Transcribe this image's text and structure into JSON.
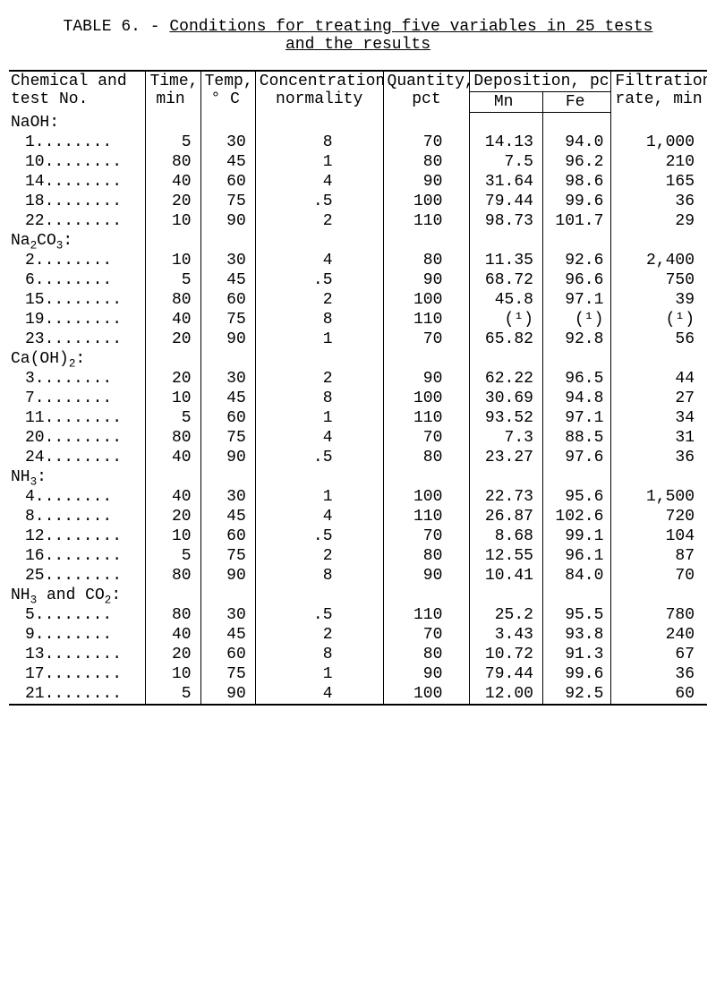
{
  "title": {
    "prefix": "TABLE 6. - ",
    "line1_underlined": "Conditions for treating five variables in 25 tests",
    "line2_underlined": "and the results"
  },
  "table": {
    "headers": {
      "chem1": "Chemical and",
      "chem2": "test No.",
      "time1": "Time,",
      "time2": "min",
      "temp1": "Temp,",
      "temp2": "° C",
      "conc1": "Concentration,",
      "conc2": "normality",
      "qty1": "Quantity,",
      "qty2": "pct",
      "dep": "Deposition, pct",
      "mn": "Mn",
      "fe": "Fe",
      "filt1": "Filtration",
      "filt2": "rate, min"
    },
    "groups": [
      {
        "label_html": "NaOH:",
        "rows": [
          {
            "no": "1........",
            "time": "5",
            "temp": "30",
            "conc": "8",
            "qty": "70",
            "mn": "14.13",
            "fe": "94.0",
            "filt": "1,000"
          },
          {
            "no": "10........",
            "time": "80",
            "temp": "45",
            "conc": "1",
            "qty": "80",
            "mn": "7.5",
            "fe": "96.2",
            "filt": "210"
          },
          {
            "no": "14........",
            "time": "40",
            "temp": "60",
            "conc": "4",
            "qty": "90",
            "mn": "31.64",
            "fe": "98.6",
            "filt": "165"
          },
          {
            "no": "18........",
            "time": "20",
            "temp": "75",
            "conc": ".5",
            "qty": "100",
            "mn": "79.44",
            "fe": "99.6",
            "filt": "36"
          },
          {
            "no": "22........",
            "time": "10",
            "temp": "90",
            "conc": "2",
            "qty": "110",
            "mn": "98.73",
            "fe": "101.7",
            "filt": "29"
          }
        ]
      },
      {
        "label_html": "Na<sub>2</sub>CO<sub>3</sub>:",
        "rows": [
          {
            "no": "2........",
            "time": "10",
            "temp": "30",
            "conc": "4",
            "qty": "80",
            "mn": "11.35",
            "fe": "92.6",
            "filt": "2,400"
          },
          {
            "no": "6........",
            "time": "5",
            "temp": "45",
            "conc": ".5",
            "qty": "90",
            "mn": "68.72",
            "fe": "96.6",
            "filt": "750"
          },
          {
            "no": "15........",
            "time": "80",
            "temp": "60",
            "conc": "2",
            "qty": "100",
            "mn": "45.8",
            "fe": "97.1",
            "filt": "39"
          },
          {
            "no": "19........",
            "time": "40",
            "temp": "75",
            "conc": "8",
            "qty": "110",
            "mn": "(¹)",
            "fe": "(¹)",
            "filt": "(¹)"
          },
          {
            "no": "23........",
            "time": "20",
            "temp": "90",
            "conc": "1",
            "qty": "70",
            "mn": "65.82",
            "fe": "92.8",
            "filt": "56"
          }
        ]
      },
      {
        "label_html": "Ca(OH)<sub>2</sub>:",
        "rows": [
          {
            "no": "3........",
            "time": "20",
            "temp": "30",
            "conc": "2",
            "qty": "90",
            "mn": "62.22",
            "fe": "96.5",
            "filt": "44"
          },
          {
            "no": "7........",
            "time": "10",
            "temp": "45",
            "conc": "8",
            "qty": "100",
            "mn": "30.69",
            "fe": "94.8",
            "filt": "27"
          },
          {
            "no": "11........",
            "time": "5",
            "temp": "60",
            "conc": "1",
            "qty": "110",
            "mn": "93.52",
            "fe": "97.1",
            "filt": "34"
          },
          {
            "no": "20........",
            "time": "80",
            "temp": "75",
            "conc": "4",
            "qty": "70",
            "mn": "7.3",
            "fe": "88.5",
            "filt": "31"
          },
          {
            "no": "24........",
            "time": "40",
            "temp": "90",
            "conc": ".5",
            "qty": "80",
            "mn": "23.27",
            "fe": "97.6",
            "filt": "36"
          }
        ]
      },
      {
        "label_html": "NH<sub>3</sub>:",
        "rows": [
          {
            "no": "4........",
            "time": "40",
            "temp": "30",
            "conc": "1",
            "qty": "100",
            "mn": "22.73",
            "fe": "95.6",
            "filt": "1,500"
          },
          {
            "no": "8........",
            "time": "20",
            "temp": "45",
            "conc": "4",
            "qty": "110",
            "mn": "26.87",
            "fe": "102.6",
            "filt": "720"
          },
          {
            "no": "12........",
            "time": "10",
            "temp": "60",
            "conc": ".5",
            "qty": "70",
            "mn": "8.68",
            "fe": "99.1",
            "filt": "104"
          },
          {
            "no": "16........",
            "time": "5",
            "temp": "75",
            "conc": "2",
            "qty": "80",
            "mn": "12.55",
            "fe": "96.1",
            "filt": "87"
          },
          {
            "no": "25........",
            "time": "80",
            "temp": "90",
            "conc": "8",
            "qty": "90",
            "mn": "10.41",
            "fe": "84.0",
            "filt": "70"
          }
        ]
      },
      {
        "label_html": "NH<sub>3</sub> and CO<sub>2</sub>:",
        "rows": [
          {
            "no": "5........",
            "time": "80",
            "temp": "30",
            "conc": ".5",
            "qty": "110",
            "mn": "25.2",
            "fe": "95.5",
            "filt": "780"
          },
          {
            "no": "9........",
            "time": "40",
            "temp": "45",
            "conc": "2",
            "qty": "70",
            "mn": "3.43",
            "fe": "93.8",
            "filt": "240"
          },
          {
            "no": "13........",
            "time": "20",
            "temp": "60",
            "conc": "8",
            "qty": "80",
            "mn": "10.72",
            "fe": "91.3",
            "filt": "67"
          },
          {
            "no": "17........",
            "time": "10",
            "temp": "75",
            "conc": "1",
            "qty": "90",
            "mn": "79.44",
            "fe": "99.6",
            "filt": "36"
          },
          {
            "no": "21........",
            "time": "5",
            "temp": "90",
            "conc": "4",
            "qty": "100",
            "mn": "12.00",
            "fe": "92.5",
            "filt": "60"
          }
        ]
      }
    ]
  }
}
